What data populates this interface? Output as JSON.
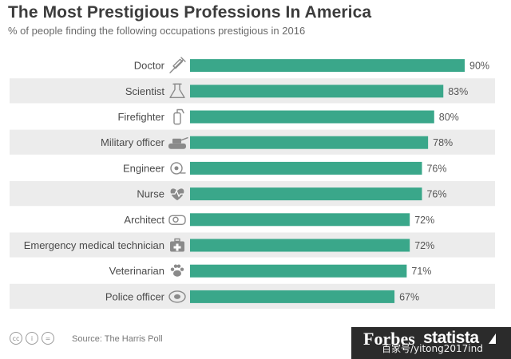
{
  "title": "The Most Prestigious Professions In America",
  "subtitle": "% of people finding the following occupations prestigious in 2016",
  "source": "Source: The Harris Poll",
  "brand_forbes": "Forbes",
  "brand_statista": "statista",
  "watermark": "百家号/yitong2017ind",
  "colors": {
    "bar": "#3aa78a",
    "stripe": "#ececec",
    "icon": "#8a8a8a",
    "label": "#4a4a4a"
  },
  "chart_data": {
    "type": "bar",
    "orientation": "horizontal",
    "title": "The Most Prestigious Professions In America",
    "subtitle": "% of people finding the following occupations prestigious in 2016",
    "categories": [
      "Doctor",
      "Scientist",
      "Firefighter",
      "Military officer",
      "Engineer",
      "Nurse",
      "Architect",
      "Emergency medical technician",
      "Veterinarian",
      "Police officer"
    ],
    "values": [
      90,
      83,
      80,
      78,
      76,
      76,
      72,
      72,
      71,
      67
    ],
    "value_labels": [
      "90%",
      "83%",
      "80%",
      "78%",
      "76%",
      "76%",
      "72%",
      "72%",
      "71%",
      "67%"
    ],
    "icons": [
      "syringe-icon",
      "flask-icon",
      "fire-extinguisher-icon",
      "tank-icon",
      "helmet-icon",
      "heartbeat-icon",
      "tape-measure-icon",
      "first-aid-kit-icon",
      "paw-icon",
      "police-badge-icon"
    ],
    "xlim": [
      0,
      100
    ],
    "grid": false,
    "legend": "none"
  }
}
